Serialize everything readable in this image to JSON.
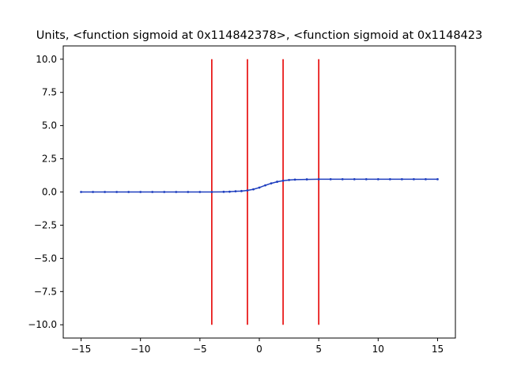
{
  "chart_data": {
    "type": "line",
    "title": "Units, <function sigmoid at 0x114842378>, <function sigmoid at 0x1148423",
    "xlim": [
      -16.5,
      16.5
    ],
    "ylim": [
      -11,
      11
    ],
    "xticks": [
      -15,
      -10,
      -5,
      0,
      5,
      10,
      15
    ],
    "xtick_labels": [
      "−15",
      "−10",
      "−5",
      "0",
      "5",
      "10",
      "15"
    ],
    "yticks": [
      -10,
      -7.5,
      -5,
      -2.5,
      0,
      2.5,
      5,
      7.5,
      10
    ],
    "ytick_labels": [
      "−10.0",
      "−7.5",
      "−5.0",
      "−2.5",
      "0.0",
      "2.5",
      "5.0",
      "7.5",
      "10.0"
    ],
    "grid": false,
    "series": [
      {
        "kind": "curve",
        "color": "#1f3fbf",
        "x": [
          -15,
          -14,
          -13,
          -12,
          -11,
          -10,
          -9,
          -8,
          -7,
          -6,
          -5,
          -4,
          -3,
          -2.5,
          -2,
          -1.5,
          -1,
          -0.5,
          0,
          0.5,
          1,
          1.5,
          2,
          2.5,
          3,
          4,
          5,
          6,
          7,
          8,
          9,
          10,
          11,
          12,
          13,
          14,
          15
        ],
        "y": [
          0,
          0,
          0,
          0,
          0,
          0,
          0,
          0,
          0,
          0,
          0,
          0,
          0.01,
          0.02,
          0.05,
          0.07,
          0.12,
          0.2,
          0.33,
          0.5,
          0.65,
          0.77,
          0.85,
          0.9,
          0.93,
          0.95,
          0.96,
          0.96,
          0.96,
          0.96,
          0.96,
          0.96,
          0.96,
          0.96,
          0.96,
          0.96,
          0.96
        ]
      }
    ],
    "vlines": {
      "color": "#e60000",
      "x": [
        -4,
        -1,
        2,
        5
      ],
      "ymin": -10,
      "ymax": 10
    }
  }
}
